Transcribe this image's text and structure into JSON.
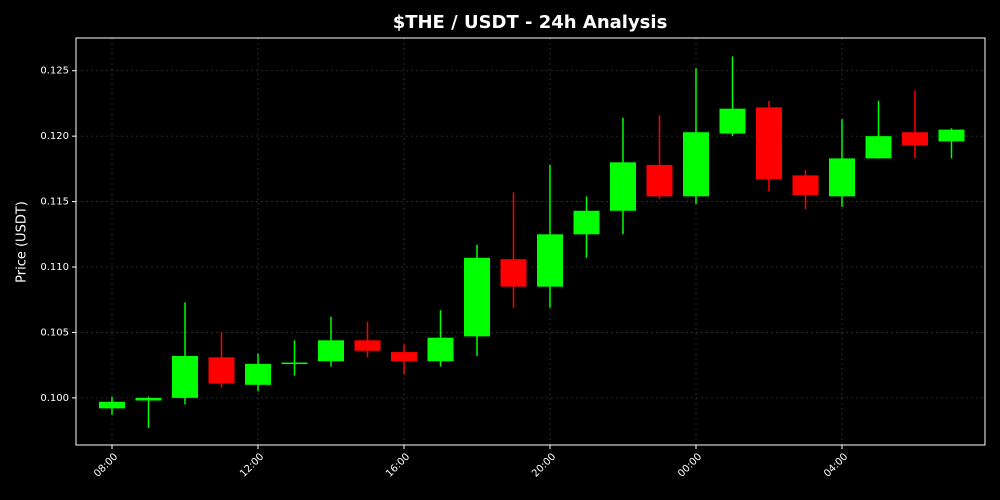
{
  "chart_data": {
    "type": "candlestick",
    "title": "$THE / USDT - 24h Analysis",
    "y_label": "Price (USDT)",
    "categories": [
      "08:00",
      null,
      null,
      null,
      "12:00",
      null,
      null,
      null,
      "16:00",
      null,
      null,
      null,
      "20:00",
      null,
      null,
      null,
      "00:00",
      null,
      null,
      null,
      "04:00",
      null,
      null,
      null
    ],
    "open": [
      0.0992,
      0.0998,
      0.1,
      0.1031,
      0.101,
      0.1026,
      0.1028,
      0.1044,
      0.1035,
      0.1028,
      0.1047,
      0.1106,
      0.1085,
      0.1125,
      0.1143,
      0.1178,
      0.1154,
      0.1202,
      0.1222,
      0.117,
      0.1154,
      0.1183,
      0.1203,
      0.1196
    ],
    "high": [
      0.1001,
      0.1001,
      0.1073,
      0.105,
      0.1034,
      0.1044,
      0.1062,
      0.1058,
      0.1041,
      0.1067,
      0.1117,
      0.1157,
      0.1178,
      0.1154,
      0.1214,
      0.1216,
      0.1252,
      0.1261,
      0.1227,
      0.1174,
      0.1213,
      0.1227,
      0.1235,
      0.1206
    ],
    "low": [
      0.0987,
      0.0977,
      0.0995,
      0.1008,
      0.1005,
      0.1017,
      0.1024,
      0.1031,
      0.1018,
      0.1024,
      0.1032,
      0.1069,
      0.1069,
      0.1107,
      0.1125,
      0.1152,
      0.1148,
      0.12,
      0.1158,
      0.1144,
      0.1146,
      0.1183,
      0.1183,
      0.1183
    ],
    "close": [
      0.0997,
      0.1,
      0.1032,
      0.1011,
      0.1026,
      0.1027,
      0.1044,
      0.1036,
      0.1028,
      0.1046,
      0.1107,
      0.1085,
      0.1125,
      0.1143,
      0.118,
      0.1154,
      0.1203,
      0.1221,
      0.1167,
      0.1155,
      0.1183,
      0.12,
      0.1193,
      0.1205
    ],
    "up_color": "#00ff00",
    "down_color": "#ff0000",
    "ylim": [
      0.0964,
      0.1275
    ],
    "yticks": [
      {
        "value": 0.1,
        "label": "0.100"
      },
      0.105,
      {
        "value": 0.11,
        "label": "0.110"
      },
      0.115,
      {
        "value": 0.12,
        "label": "0.120"
      },
      0.125
    ],
    "grid": true
  }
}
